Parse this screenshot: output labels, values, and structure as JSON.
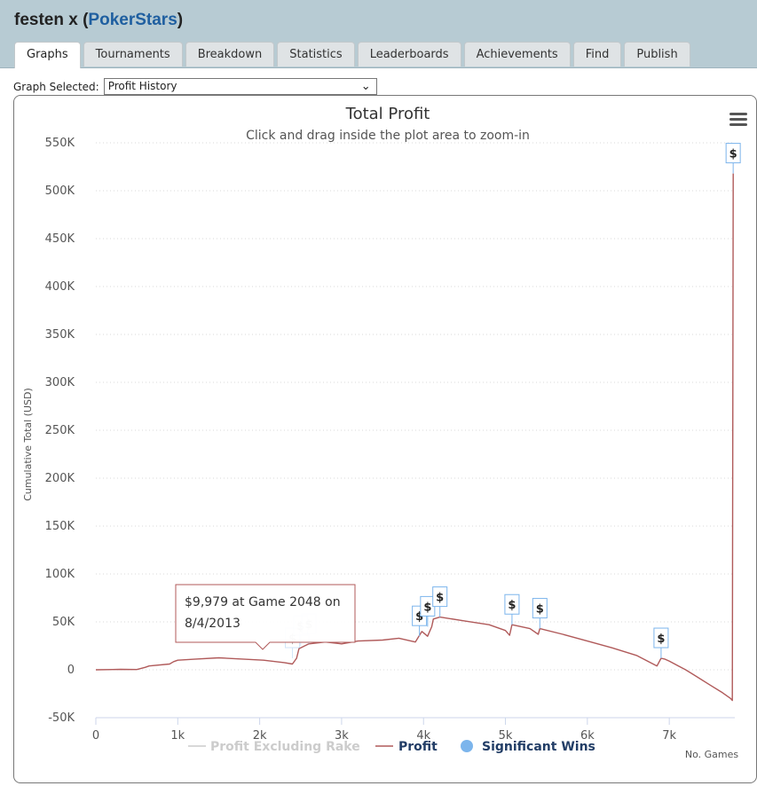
{
  "header": {
    "player": "festen x",
    "open_paren": " (",
    "site": "PokerStars",
    "close_paren": ")"
  },
  "tabs": [
    {
      "label": "Graphs",
      "active": true
    },
    {
      "label": "Tournaments"
    },
    {
      "label": "Breakdown"
    },
    {
      "label": "Statistics"
    },
    {
      "label": "Leaderboards"
    },
    {
      "label": "Achievements"
    },
    {
      "label": "Find"
    },
    {
      "label": "Publish"
    }
  ],
  "graph_select": {
    "label": "Graph Selected:",
    "value": "Profit History"
  },
  "tooltip": {
    "line1": "$9,979 at Game 2048 on",
    "line2": "8/4/2013"
  },
  "menu_icon": "hamburger-icon",
  "colors": {
    "profit": "#b05a5a",
    "excluding_rake": "#cccccc",
    "significant_wins": "#7cb5ec",
    "header_bg": "#b7cbd3",
    "site_link": "#1f5fa0"
  },
  "chart_data": {
    "type": "line",
    "title": "Total Profit",
    "subtitle": "Click and drag inside the plot area to zoom-in",
    "ylabel": "Cumulative Total (USD)",
    "xlabel": "No. Games",
    "ylim": [
      -50000,
      550000
    ],
    "xlim": [
      0,
      7800
    ],
    "y_ticks": [
      -50000,
      0,
      50000,
      100000,
      150000,
      200000,
      250000,
      300000,
      350000,
      400000,
      450000,
      500000,
      550000
    ],
    "y_tick_labels": [
      "-50K",
      "0",
      "50K",
      "100K",
      "150K",
      "200K",
      "250K",
      "300K",
      "350K",
      "400K",
      "450K",
      "500K",
      "550K"
    ],
    "x_ticks": [
      0,
      1000,
      2000,
      3000,
      4000,
      5000,
      6000,
      7000
    ],
    "x_tick_labels": [
      "0",
      "1k",
      "2k",
      "3k",
      "4k",
      "5k",
      "6k",
      "7k"
    ],
    "grid": "horizontal-dotted",
    "legend_position": "bottom",
    "legend": [
      {
        "name": "Profit Excluding Rake",
        "kind": "line",
        "muted": true
      },
      {
        "name": "Profit",
        "kind": "line"
      },
      {
        "name": "Significant Wins",
        "kind": "marker"
      }
    ],
    "series": [
      {
        "name": "Profit",
        "points": [
          [
            0,
            0
          ],
          [
            300,
            500
          ],
          [
            500,
            300
          ],
          [
            600,
            2500
          ],
          [
            650,
            4000
          ],
          [
            900,
            6000
          ],
          [
            950,
            8500
          ],
          [
            1000,
            10000
          ],
          [
            1200,
            11000
          ],
          [
            1500,
            12500
          ],
          [
            2048,
            9979
          ],
          [
            2300,
            7500
          ],
          [
            2400,
            6000
          ],
          [
            2450,
            12000
          ],
          [
            2480,
            22000
          ],
          [
            2550,
            25000
          ],
          [
            2600,
            27000
          ],
          [
            2800,
            29000
          ],
          [
            3000,
            27000
          ],
          [
            3200,
            30000
          ],
          [
            3500,
            31000
          ],
          [
            3700,
            33000
          ],
          [
            3900,
            29000
          ],
          [
            3980,
            40000
          ],
          [
            4050,
            35000
          ],
          [
            4100,
            45000
          ],
          [
            4120,
            53000
          ],
          [
            4200,
            55000
          ],
          [
            4500,
            51000
          ],
          [
            4800,
            47000
          ],
          [
            5000,
            41000
          ],
          [
            5050,
            36000
          ],
          [
            5080,
            47000
          ],
          [
            5300,
            43000
          ],
          [
            5400,
            37000
          ],
          [
            5420,
            43000
          ],
          [
            5700,
            37000
          ],
          [
            6000,
            30000
          ],
          [
            6300,
            23000
          ],
          [
            6600,
            15000
          ],
          [
            6850,
            4000
          ],
          [
            6900,
            12000
          ],
          [
            6950,
            11000
          ],
          [
            7000,
            9000
          ],
          [
            7200,
            0
          ],
          [
            7350,
            -8000
          ],
          [
            7500,
            -16000
          ],
          [
            7650,
            -24000
          ],
          [
            7750,
            -30000
          ],
          [
            7770,
            -32000
          ],
          [
            7780,
            518000
          ]
        ]
      },
      {
        "name": "Significant Wins",
        "marker": "$",
        "points": [
          [
            2400,
            12000
          ],
          [
            2500,
            25000
          ],
          [
            2600,
            27000
          ],
          [
            3950,
            35000
          ],
          [
            4050,
            45000
          ],
          [
            4200,
            55000
          ],
          [
            5080,
            47000
          ],
          [
            5420,
            43000
          ],
          [
            6900,
            12000
          ],
          [
            7780,
            518000
          ]
        ],
        "faded_count": 3
      }
    ]
  }
}
